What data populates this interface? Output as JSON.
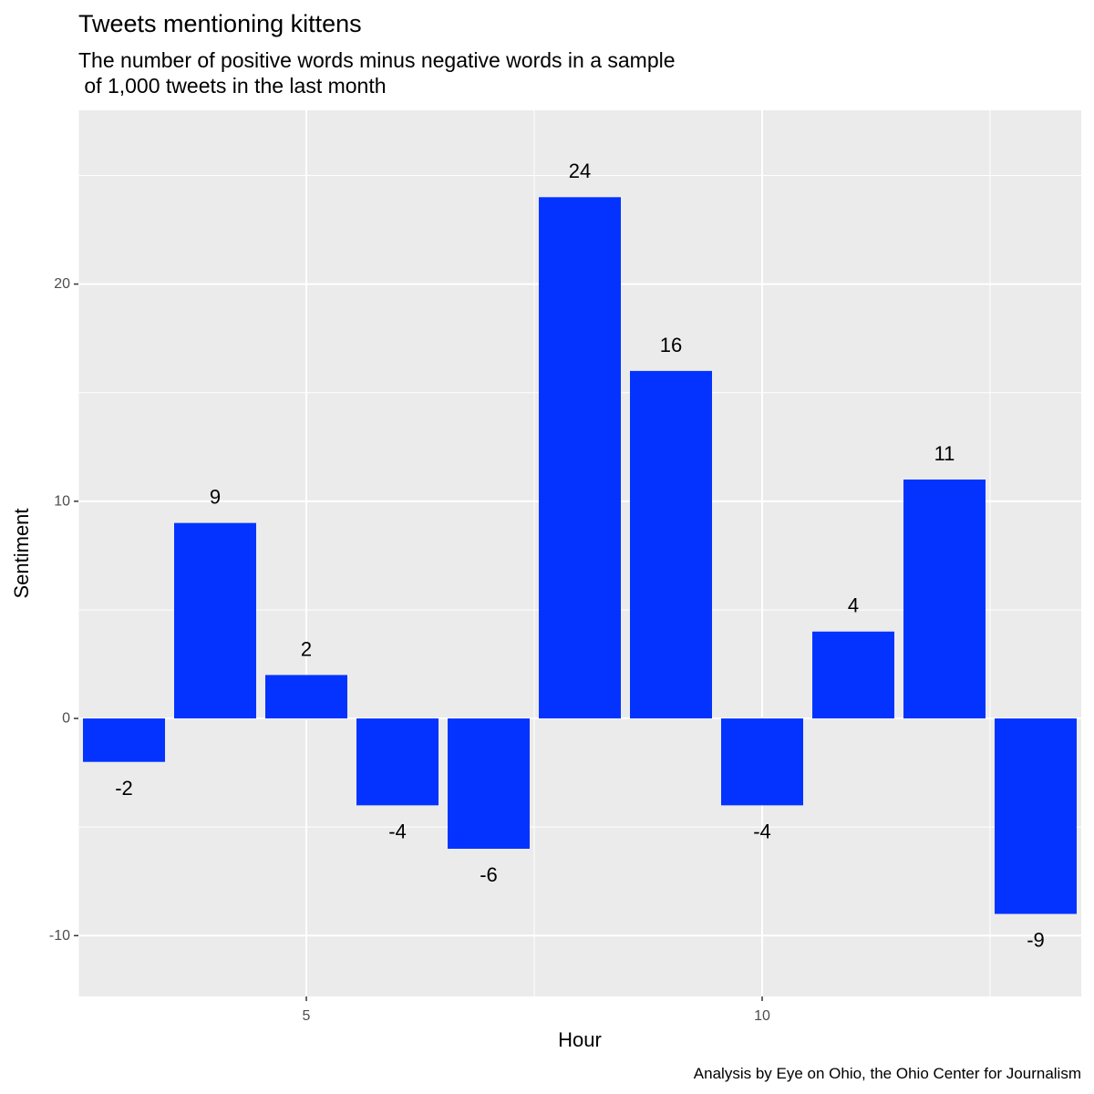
{
  "chart_data": {
    "type": "bar",
    "title": "Tweets mentioning kittens",
    "subtitle_lines": [
      "The number of positive words minus negative words in a sample",
      " of 1,000 tweets in the last month"
    ],
    "caption": "Analysis by Eye on Ohio, the Ohio Center for Journalism",
    "xlabel": "Hour",
    "ylabel": "Sentiment",
    "x": [
      3,
      4,
      5,
      6,
      7,
      8,
      9,
      10,
      11,
      12,
      13
    ],
    "values": [
      -2,
      9,
      2,
      -4,
      -6,
      24,
      16,
      -4,
      4,
      11,
      -9
    ],
    "data_labels": [
      "-2",
      "9",
      "2",
      "-4",
      "-6",
      "24",
      "16",
      "-4",
      "4",
      "11",
      "-9"
    ],
    "x_ticks": [
      5,
      10
    ],
    "x_tick_labels": [
      "5",
      "10"
    ],
    "y_ticks": [
      -10,
      0,
      10,
      20
    ],
    "y_tick_labels": [
      "-10",
      "0",
      "10",
      "20"
    ],
    "xlim": [
      2.5,
      13.5
    ],
    "ylim": [
      -12.8,
      28
    ],
    "bar_color": "#0433ff",
    "panel_color": "#ebebeb",
    "grid_color": "#ffffff",
    "grid": true,
    "legend": "none"
  }
}
